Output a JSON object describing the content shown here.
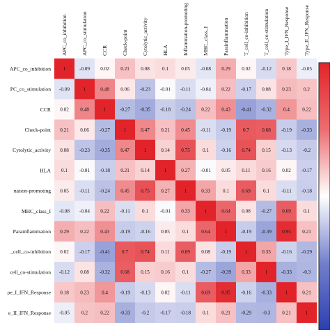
{
  "chart_data": {
    "type": "heatmap",
    "title": "",
    "xlabel": "",
    "ylabel": "",
    "labels": [
      "APC_co_inhibition",
      "APC_co_stimulation",
      "CCR",
      "Check-point",
      "Cytolytic_activity",
      "HLA",
      "Inflammation-promoting",
      "MHC_class_I",
      "Parainflammation",
      "T_cell_co-inhibition",
      "T_cell_co-stimulation",
      "Type_I_IFN_Response",
      "Type_II_IFN_Response"
    ],
    "row_labels_visible": [
      "APC_co_inhibition",
      "PC_co_stimulation",
      "CCR",
      "Check-point",
      "Cytolytic_activity",
      "HLA",
      "nation-promoting",
      "MHC_class_I",
      "Parainflammation",
      "_cell_co-inhibition",
      "cell_co-stimulation",
      "pe_I_IFN_Response",
      "e_II_IFN_Response"
    ],
    "values": [
      [
        1,
        -0.09,
        0.02,
        0.21,
        0.08,
        0.1,
        0.05,
        -0.08,
        0.29,
        0.02,
        -0.12,
        0.18,
        -0.05
      ],
      [
        -0.09,
        1,
        0.48,
        0.06,
        -0.23,
        -0.01,
        -0.11,
        -0.04,
        0.22,
        -0.17,
        0.08,
        0.23,
        0.2
      ],
      [
        0.02,
        0.48,
        1,
        -0.27,
        -0.35,
        -0.18,
        -0.24,
        0.22,
        0.43,
        -0.41,
        -0.32,
        0.4,
        0.22
      ],
      [
        0.21,
        0.06,
        -0.27,
        1,
        0.47,
        0.21,
        0.45,
        -0.11,
        -0.19,
        0.7,
        0.68,
        -0.19,
        -0.33
      ],
      [
        0.08,
        -0.23,
        -0.35,
        0.47,
        1,
        0.14,
        0.75,
        0.1,
        -0.16,
        0.74,
        0.15,
        -0.13,
        -0.2
      ],
      [
        0.1,
        -0.01,
        -0.18,
        0.21,
        0.14,
        1,
        0.27,
        -0.01,
        0.05,
        0.11,
        0.16,
        0.02,
        -0.17
      ],
      [
        0.05,
        -0.11,
        -0.24,
        0.45,
        0.75,
        0.27,
        1,
        0.33,
        0.1,
        0.69,
        0.1,
        -0.11,
        -0.18
      ],
      [
        -0.08,
        -0.04,
        0.22,
        -0.11,
        0.1,
        -0.01,
        0.33,
        1,
        0.64,
        0.08,
        -0.27,
        0.69,
        0.1
      ],
      [
        0.29,
        0.22,
        0.43,
        -0.19,
        -0.16,
        0.05,
        0.1,
        0.64,
        1,
        -0.19,
        -0.39,
        0.95,
        0.21
      ],
      [
        0.02,
        -0.17,
        -0.41,
        0.7,
        0.74,
        0.11,
        0.69,
        0.08,
        -0.19,
        1,
        0.33,
        -0.16,
        -0.29
      ],
      [
        -0.12,
        0.08,
        -0.32,
        0.68,
        0.15,
        0.16,
        0.1,
        -0.27,
        -0.39,
        0.33,
        1,
        -0.33,
        -0.3
      ],
      [
        0.18,
        0.23,
        0.4,
        -0.19,
        -0.13,
        0.02,
        -0.11,
        0.69,
        0.95,
        -0.16,
        -0.33,
        1,
        0.21
      ],
      [
        -0.05,
        0.2,
        0.22,
        -0.33,
        -0.2,
        -0.17,
        -0.18,
        0.1,
        0.21,
        -0.29,
        -0.3,
        0.21,
        1
      ]
    ],
    "value_range": [
      -1,
      1
    ],
    "colormap": {
      "negative": "#2c3fb0",
      "zero": "#ffffff",
      "positive": "#e2242a"
    },
    "grid": false,
    "legend": "right colorbar"
  }
}
